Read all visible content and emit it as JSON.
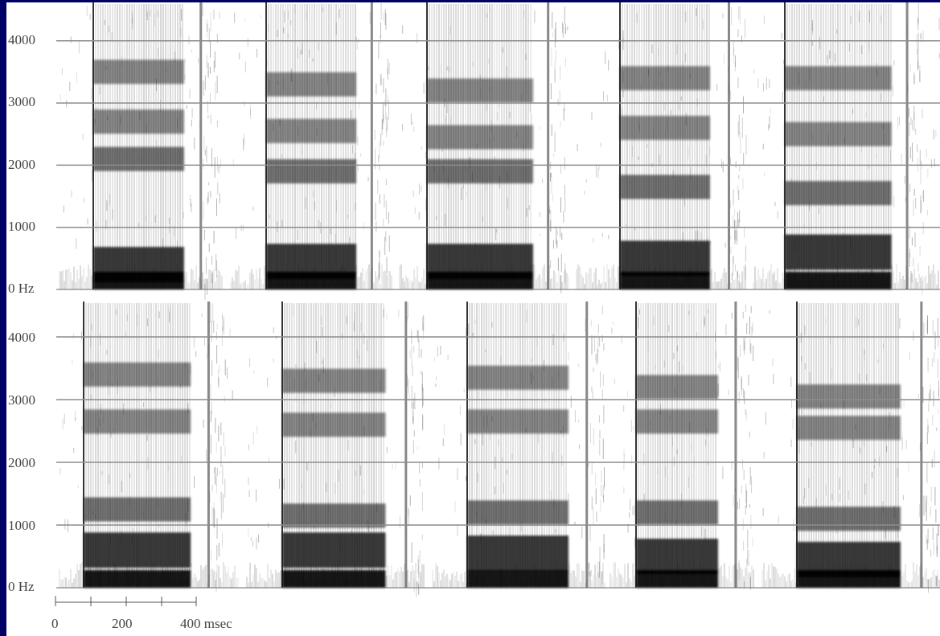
{
  "y_axis": {
    "tick_labels": [
      "4000",
      "3000",
      "2000",
      "1000",
      "0 Hz"
    ],
    "values_hz": [
      4000,
      3000,
      2000,
      1000,
      0
    ]
  },
  "x_scale": {
    "tick_labels": [
      "0",
      "200",
      "400 msec"
    ],
    "values_msec": [
      0,
      200,
      400
    ]
  },
  "panels": {
    "top_row": [
      {
        "formants_hz": [
          400,
          2100,
          2700,
          3500
        ],
        "length": 0.45
      },
      {
        "formants_hz": [
          450,
          1900,
          2550,
          3300
        ],
        "length": 0.5
      },
      {
        "formants_hz": [
          450,
          1900,
          2450,
          3200
        ],
        "length": 0.52
      },
      {
        "formants_hz": [
          500,
          1650,
          2600,
          3400
        ],
        "length": 0.48
      },
      {
        "formants_hz": [
          600,
          1550,
          2500,
          3400
        ],
        "length": 0.48
      }
    ],
    "bottom_row": [
      {
        "formants_hz": [
          600,
          1250,
          2650,
          3400
        ],
        "length": 0.48
      },
      {
        "formants_hz": [
          600,
          1150,
          2600,
          3300
        ],
        "length": 0.5
      },
      {
        "formants_hz": [
          550,
          1200,
          2650,
          3350
        ],
        "length": 0.5
      },
      {
        "formants_hz": [
          500,
          1200,
          2650,
          3200
        ],
        "length": 0.44
      },
      {
        "formants_hz": [
          450,
          1100,
          2550,
          3050
        ],
        "length": 0.5
      }
    ]
  }
}
